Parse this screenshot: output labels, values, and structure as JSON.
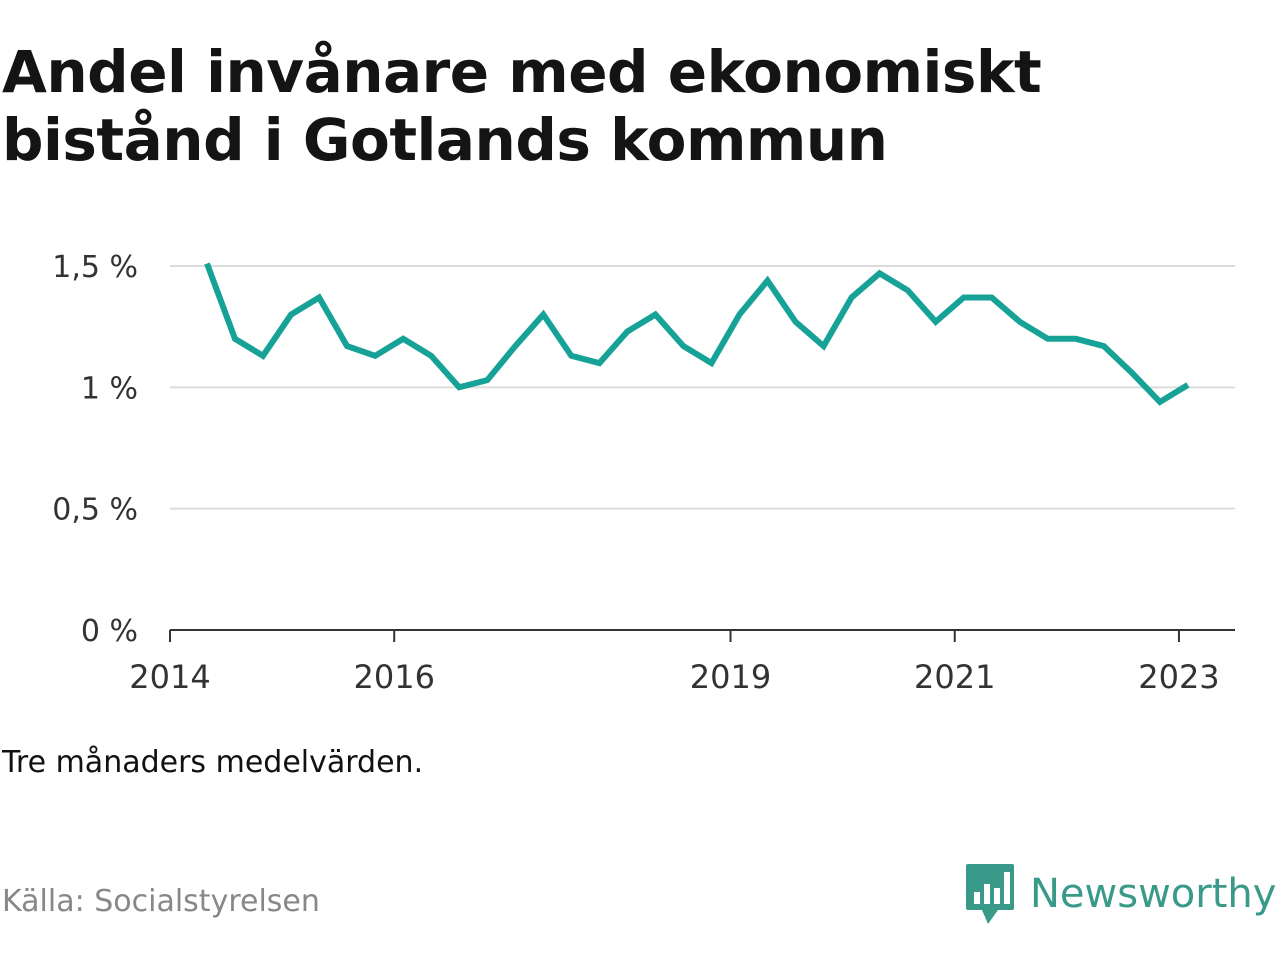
{
  "title": "Andel invånare med ekonomiskt bistånd i Gotlands kommun",
  "note": "Tre månaders medelvärden.",
  "source": "Källa: Socialstyrelsen",
  "brand": {
    "name": "Newsworthy",
    "icon": "newsworthy-logo-icon",
    "color": "#3a9a8a"
  },
  "chart_data": {
    "type": "line",
    "color": "#17a298",
    "ylim": [
      0,
      1.5
    ],
    "xlim": [
      2014.0,
      2023.5
    ],
    "y_ticks": [
      {
        "value": 1.5,
        "label": "1,5 %"
      },
      {
        "value": 1.0,
        "label": "1 %"
      },
      {
        "value": 0.5,
        "label": "0,5 %"
      },
      {
        "value": 0.0,
        "label": "0 %"
      }
    ],
    "x_ticks": [
      {
        "value": 2014,
        "label": "2014"
      },
      {
        "value": 2016,
        "label": "2016"
      },
      {
        "value": 2019,
        "label": "2019"
      },
      {
        "value": 2021,
        "label": "2021"
      },
      {
        "value": 2023,
        "label": "2023"
      }
    ],
    "grid": true,
    "series": [
      {
        "x": [
          2014.33,
          2014.58,
          2014.83,
          2015.08,
          2015.33,
          2015.58,
          2015.83,
          2016.08,
          2016.33,
          2016.58,
          2016.83,
          2017.08,
          2017.33,
          2017.58,
          2017.83,
          2018.08,
          2018.33,
          2018.58,
          2018.83,
          2019.08,
          2019.33,
          2019.58,
          2019.83,
          2020.08,
          2020.33,
          2020.58,
          2020.83,
          2021.08,
          2021.33,
          2021.58,
          2021.83,
          2022.08,
          2022.33,
          2022.58,
          2022.83,
          2023.08
        ],
        "values": [
          1.51,
          1.2,
          1.13,
          1.3,
          1.37,
          1.17,
          1.13,
          1.2,
          1.13,
          1.0,
          1.03,
          1.17,
          1.3,
          1.13,
          1.1,
          1.23,
          1.3,
          1.17,
          1.1,
          1.3,
          1.44,
          1.27,
          1.17,
          1.37,
          1.47,
          1.4,
          1.27,
          1.37,
          1.37,
          1.27,
          1.2,
          1.2,
          1.17,
          1.06,
          0.94,
          1.01
        ]
      }
    ]
  }
}
